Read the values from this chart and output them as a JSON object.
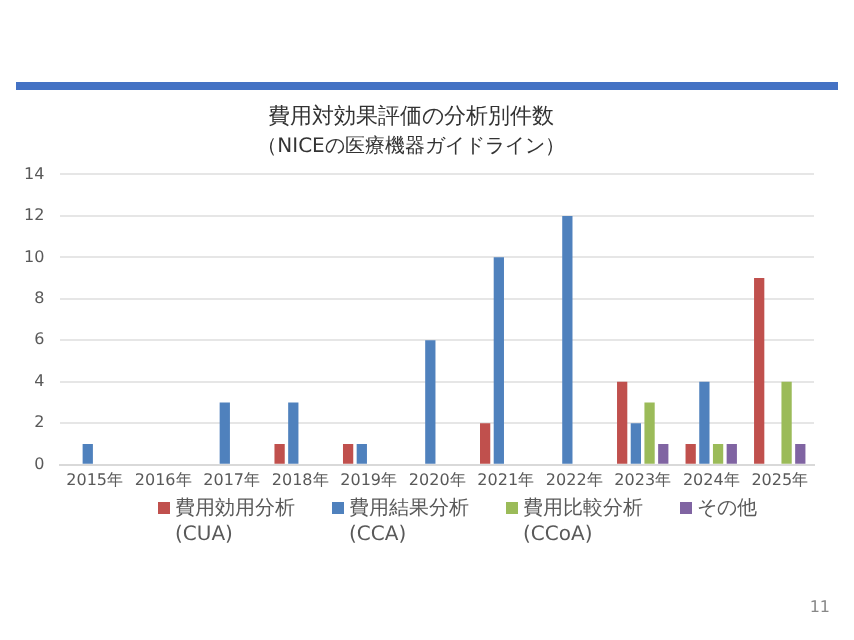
{
  "chart_data": {
    "type": "bar",
    "title": "費用対効果評価の分析別件数",
    "subtitle": "（NICEの医療機器ガイドライン）",
    "categories": [
      "2015年",
      "2016年",
      "2017年",
      "2018年",
      "2019年",
      "2020年",
      "2021年",
      "2022年",
      "2023年",
      "2024年",
      "2025年"
    ],
    "series": [
      {
        "name": "費用効用分析\n(CUA)",
        "color": "#c0504d",
        "values": [
          0,
          0,
          0,
          1,
          1,
          0,
          2,
          0,
          4,
          1,
          9
        ]
      },
      {
        "name": "費用結果分析\n(CCA)",
        "color": "#4f81bd",
        "values": [
          1,
          0,
          3,
          3,
          1,
          6,
          10,
          12,
          2,
          4,
          0
        ]
      },
      {
        "name": "費用比較分析\n(CCoA)",
        "color": "#9bbb59",
        "values": [
          0,
          0,
          0,
          0,
          0,
          0,
          0,
          0,
          3,
          1,
          4
        ]
      },
      {
        "name": "その他",
        "color": "#8064a2",
        "values": [
          0,
          0,
          0,
          0,
          0,
          0,
          0,
          0,
          1,
          1,
          1
        ]
      }
    ],
    "ylim": [
      0,
      14
    ],
    "yticks": [
      0,
      2,
      4,
      6,
      8,
      10,
      12,
      14
    ],
    "grid": "y",
    "legend": "bottom",
    "annotations": [
      "11"
    ]
  }
}
